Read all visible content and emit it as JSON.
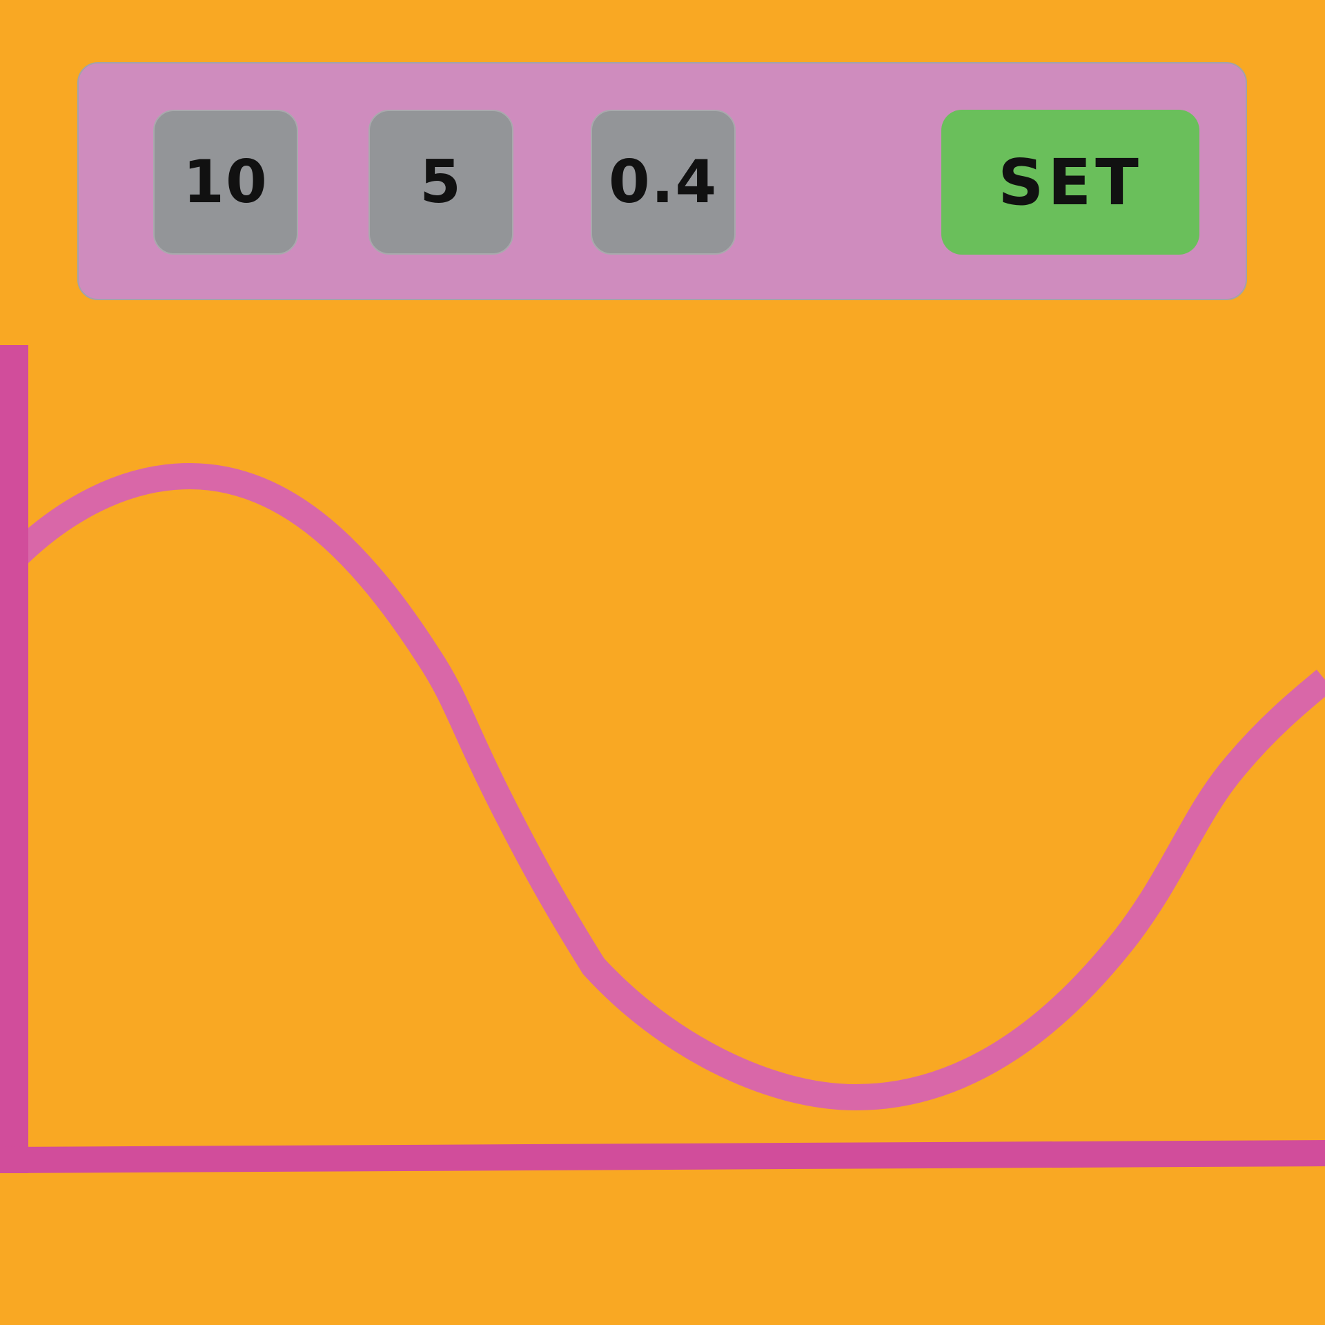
{
  "controls": {
    "param_1": "10",
    "param_2": "5",
    "param_3": "0.4",
    "set_label": "SET"
  },
  "colors": {
    "background": "#f9a823",
    "panel": "#cf8cbe",
    "param_box": "#939598",
    "set_button": "#6abf5b",
    "axis": "#d14d9b",
    "curve": "#d967a8"
  }
}
